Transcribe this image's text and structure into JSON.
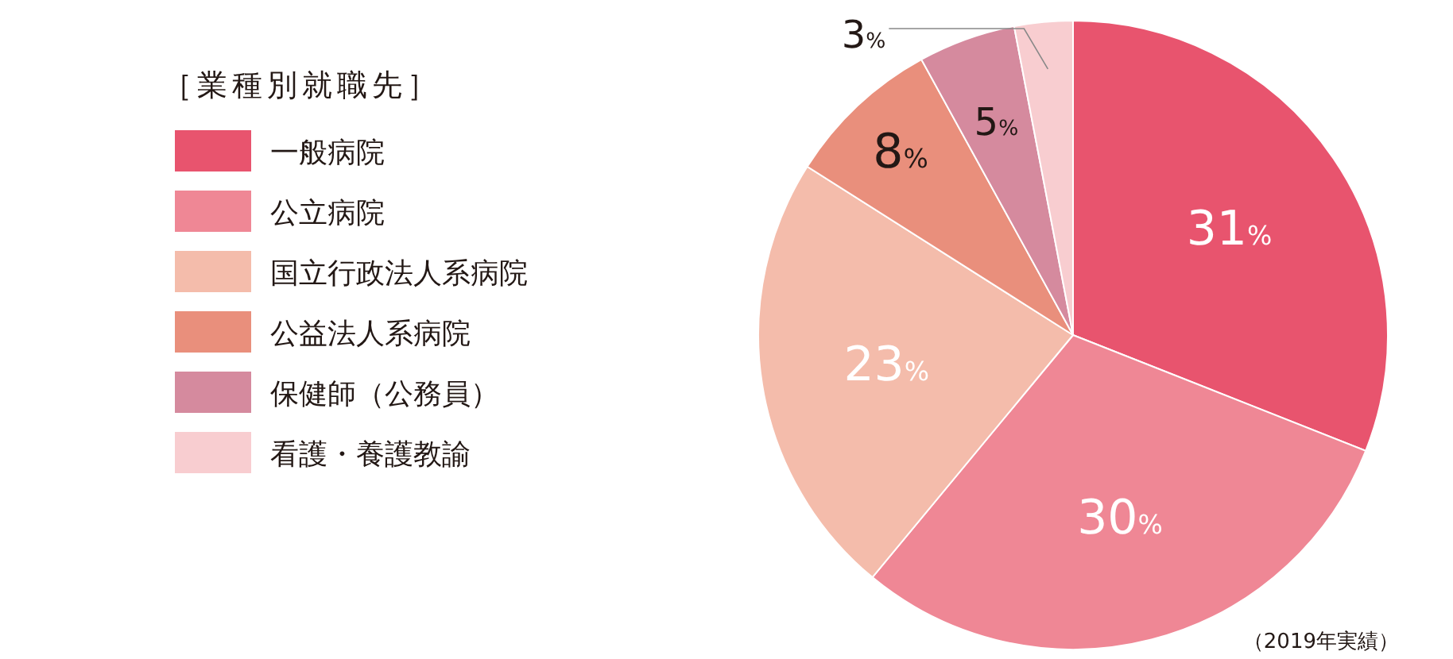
{
  "chart_data": {
    "type": "pie",
    "legend_title": "［業種別就職先］",
    "legend": "left",
    "categories": [
      "一般病院",
      "公立病院",
      "国立行政法人系病院",
      "公益法人系病院",
      "保健師（公務員）",
      "看護・養護教諭"
    ],
    "values": [
      31,
      30,
      23,
      8,
      5,
      3
    ],
    "colors": [
      "#e8546e",
      "#ef8795",
      "#f4bcab",
      "#e98f7c",
      "#d58a9e",
      "#f8cdd0"
    ],
    "value_labels": [
      "31%",
      "30%",
      "23%",
      "8%",
      "5%",
      "3%"
    ],
    "annotations": [
      "（2019年実績）"
    ]
  }
}
